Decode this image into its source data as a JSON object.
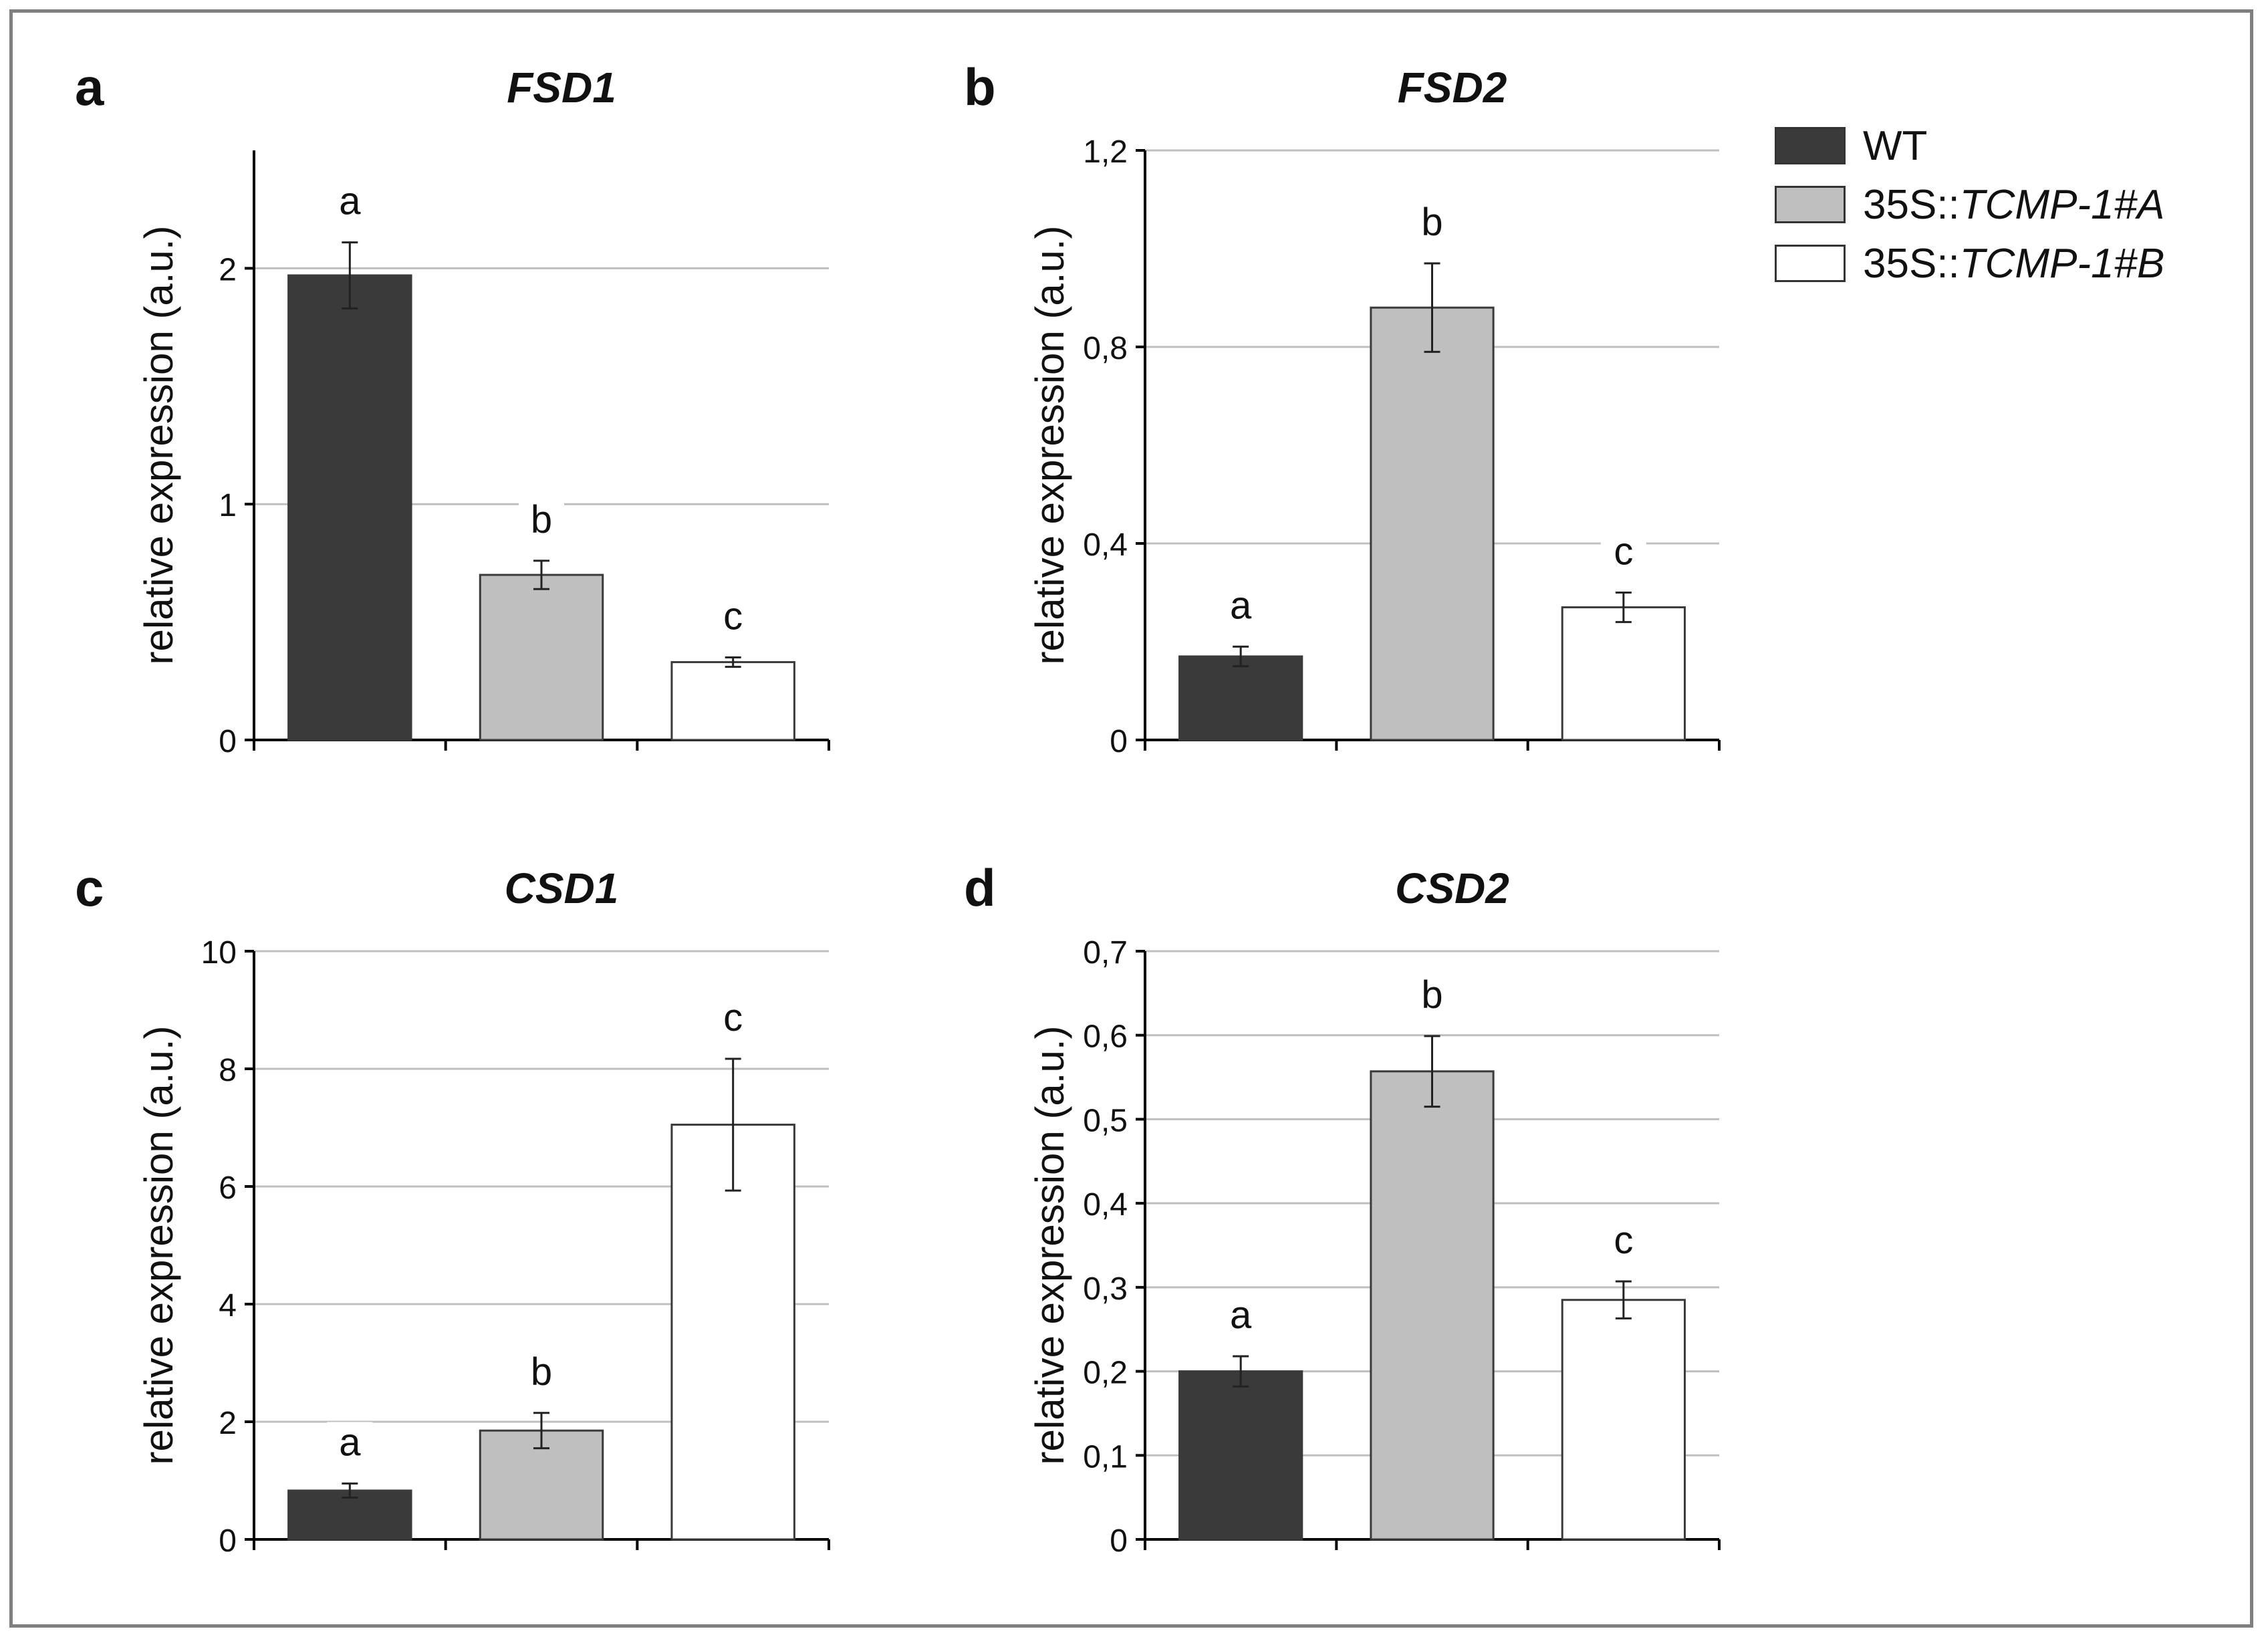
{
  "legend": {
    "items": [
      {
        "prefix": "WT",
        "italic": "",
        "color": "#3a3a3a"
      },
      {
        "prefix": "35S::",
        "italic": "TCMP-1#A",
        "color": "#bfbfbf"
      },
      {
        "prefix": "35S::",
        "italic": "TCMP-1#B",
        "color": "#ffffff"
      }
    ]
  },
  "chart_data": [
    {
      "panel": "a",
      "type": "bar",
      "title": "FSD1",
      "ylabel": "relative expression (a.u.)",
      "ylim": [
        0,
        2.5
      ],
      "yticks": [
        0,
        1,
        2
      ],
      "tick_labels": [
        "0",
        "1",
        "2"
      ],
      "categories": [
        "WT",
        "35S::TCMP-1#A",
        "35S::TCMP-1#B"
      ],
      "values": [
        1.97,
        0.7,
        0.33
      ],
      "errors": [
        0.14,
        0.06,
        0.02
      ],
      "letters": [
        "a",
        "b",
        "c"
      ]
    },
    {
      "panel": "b",
      "type": "bar",
      "title": "FSD2",
      "ylabel": "relative expression (a.u.)",
      "ylim": [
        0,
        1.2
      ],
      "yticks": [
        0,
        0.4,
        0.8,
        1.2
      ],
      "tick_labels": [
        "0",
        "0,4",
        "0,8",
        "1,2"
      ],
      "categories": [
        "WT",
        "35S::TCMP-1#A",
        "35S::TCMP-1#B"
      ],
      "values": [
        0.17,
        0.88,
        0.27
      ],
      "errors": [
        0.02,
        0.09,
        0.03
      ],
      "letters": [
        "a",
        "b",
        "c"
      ]
    },
    {
      "panel": "c",
      "type": "bar",
      "title": "CSD1",
      "ylabel": "relative expression (a.u.)",
      "ylim": [
        0,
        10
      ],
      "yticks": [
        0,
        2,
        4,
        6,
        8,
        10
      ],
      "tick_labels": [
        "0",
        "2",
        "4",
        "6",
        "8",
        "10"
      ],
      "categories": [
        "WT",
        "35S::TCMP-1#A",
        "35S::TCMP-1#B"
      ],
      "values": [
        0.83,
        1.85,
        7.05
      ],
      "errors": [
        0.12,
        0.3,
        1.12
      ],
      "letters": [
        "a",
        "b",
        "c"
      ]
    },
    {
      "panel": "d",
      "type": "bar",
      "title": "CSD2",
      "ylabel": "relative expression (a.u.)",
      "ylim": [
        0,
        0.7
      ],
      "yticks": [
        0,
        0.1,
        0.2,
        0.3,
        0.4,
        0.5,
        0.6,
        0.7
      ],
      "tick_labels": [
        "0",
        "0,1",
        "0,2",
        "0,3",
        "0,4",
        "0,5",
        "0,6",
        "0,7"
      ],
      "categories": [
        "WT",
        "35S::TCMP-1#A",
        "35S::TCMP-1#B"
      ],
      "values": [
        0.2,
        0.557,
        0.285
      ],
      "errors": [
        0.018,
        0.042,
        0.022
      ],
      "letters": [
        "a",
        "b",
        "c"
      ]
    }
  ]
}
